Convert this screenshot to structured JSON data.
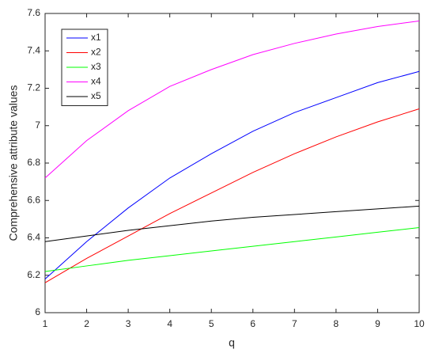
{
  "chart_data": {
    "type": "line",
    "xlabel": "q",
    "ylabel": "Comprehensive attribute values",
    "x": [
      1,
      2,
      3,
      4,
      5,
      6,
      7,
      8,
      9,
      10
    ],
    "series": [
      {
        "name": "x1",
        "color": "#0000ff",
        "values": [
          6.18,
          6.38,
          6.56,
          6.72,
          6.85,
          6.97,
          7.07,
          7.15,
          7.23,
          7.29
        ]
      },
      {
        "name": "x2",
        "color": "#ff0000",
        "values": [
          6.16,
          6.29,
          6.41,
          6.53,
          6.64,
          6.75,
          6.85,
          6.94,
          7.02,
          7.09
        ]
      },
      {
        "name": "x3",
        "color": "#00ff00",
        "values": [
          6.22,
          6.25,
          6.28,
          6.305,
          6.33,
          6.355,
          6.38,
          6.405,
          6.43,
          6.455
        ]
      },
      {
        "name": "x4",
        "color": "#ff00ff",
        "values": [
          6.72,
          6.92,
          7.08,
          7.21,
          7.3,
          7.38,
          7.44,
          7.49,
          7.53,
          7.56
        ]
      },
      {
        "name": "x5",
        "color": "#000000",
        "values": [
          6.38,
          6.41,
          6.44,
          6.465,
          6.49,
          6.51,
          6.525,
          6.54,
          6.555,
          6.57
        ]
      }
    ],
    "xlim": [
      1,
      10
    ],
    "xticks": [
      1,
      2,
      3,
      4,
      5,
      6,
      7,
      8,
      9,
      10
    ],
    "ylim": [
      6,
      7.6
    ],
    "yticks": [
      6,
      6.2,
      6.4,
      6.6,
      6.8,
      7,
      7.2,
      7.4,
      7.6
    ],
    "grid": false,
    "legend": "northwest"
  }
}
